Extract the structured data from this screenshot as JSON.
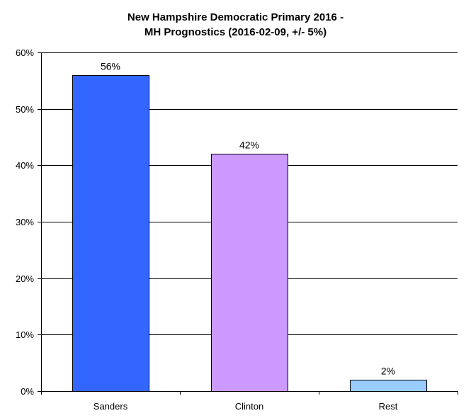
{
  "chart_data": {
    "type": "bar",
    "title_line1": "New Hampshire Democratic Primary 2016 -",
    "title_line2": "MH Prognostics (2016-02-09, +/- 5%)",
    "xlabel": "",
    "ylabel": "",
    "categories": [
      "Sanders",
      "Clinton",
      "Rest"
    ],
    "values": [
      56,
      42,
      2
    ],
    "data_labels": [
      "56%",
      "42%",
      "2%"
    ],
    "colors": [
      "#3366ff",
      "#cc99ff",
      "#99ccff"
    ],
    "ylim": [
      0,
      60
    ],
    "yticks": [
      0,
      10,
      20,
      30,
      40,
      50,
      60
    ],
    "ytick_labels": [
      "0%",
      "10%",
      "20%",
      "30%",
      "40%",
      "50%",
      "60%"
    ],
    "grid": true,
    "legend": "none"
  }
}
